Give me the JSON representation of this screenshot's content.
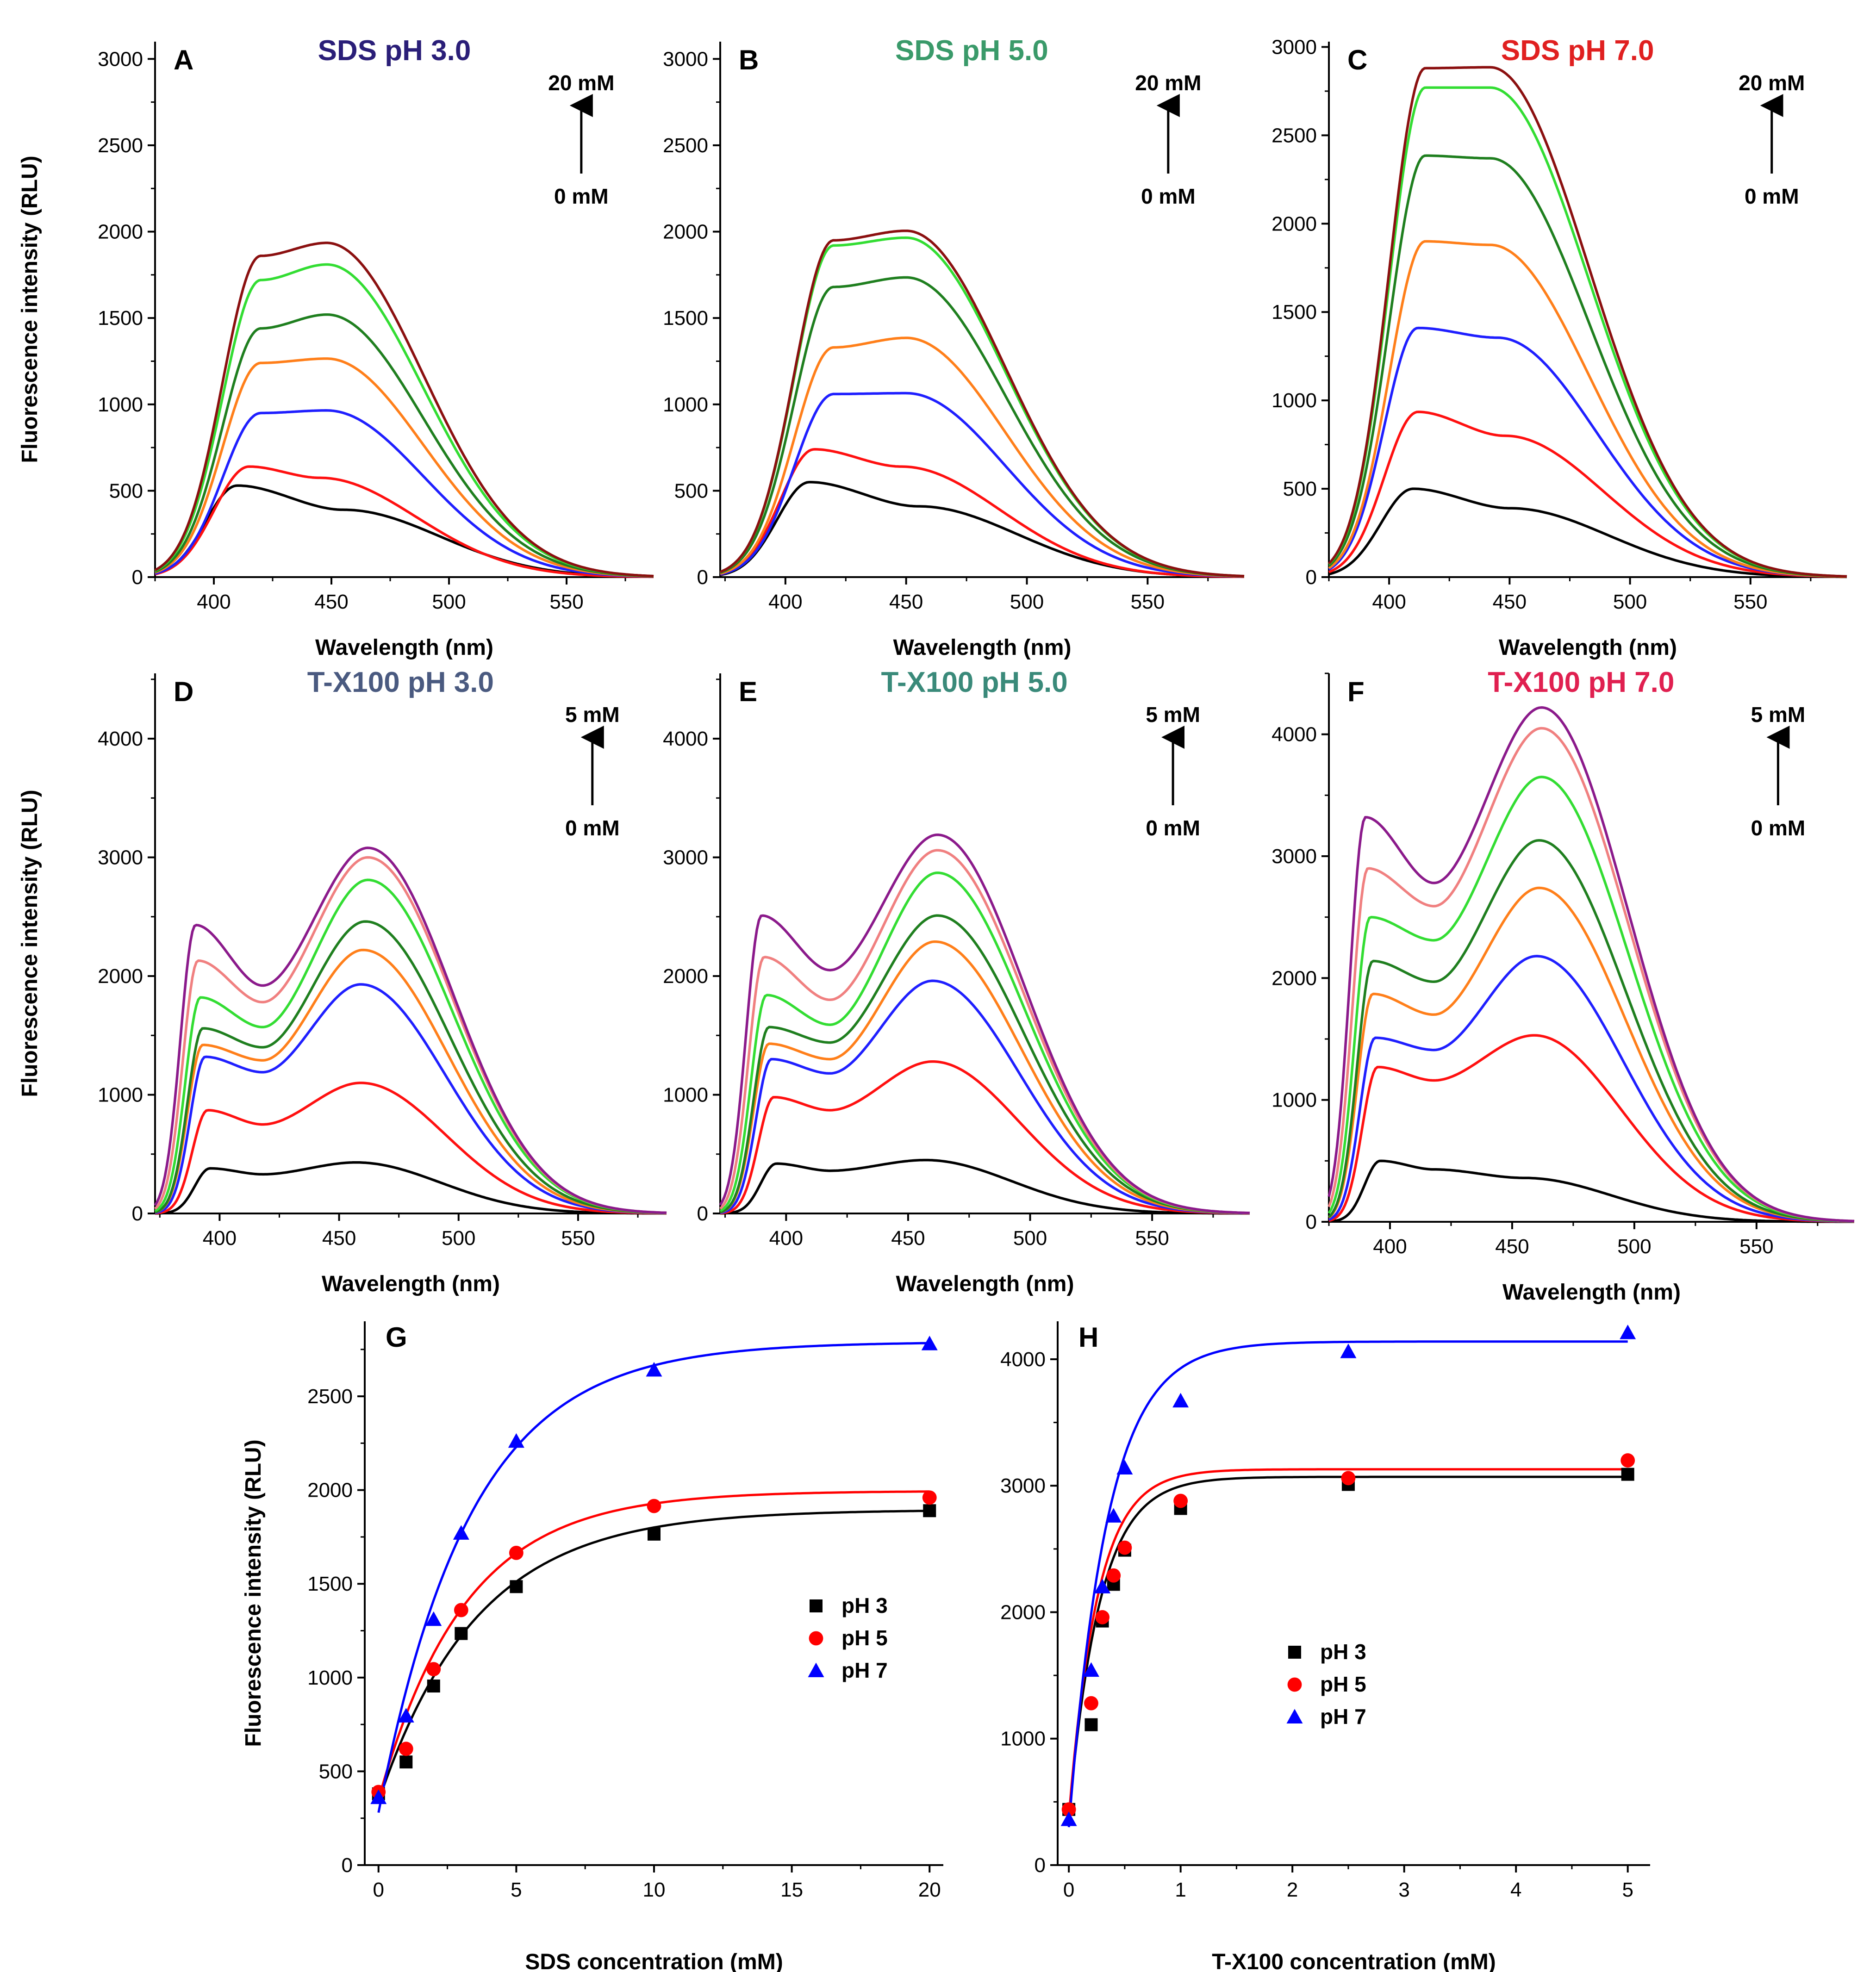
{
  "figure": {
    "spectra_panels": [
      {
        "letter": "A",
        "title": "SDS pH 3.0",
        "title_color": "#2a1e78",
        "xlabel": "Wavelength (nm)",
        "ylabel": "Fluorescence intensity (RLU)",
        "xlim": [
          375,
          587
        ],
        "ylim": [
          0,
          3100
        ],
        "xticks": [
          400,
          450,
          500,
          550
        ],
        "yticks": [
          0,
          500,
          1000,
          1500,
          2000,
          2500,
          3000
        ],
        "arrow_top": "20 mM",
        "arrow_bottom": "0 mM",
        "series": [
          {
            "color": "#000000",
            "shape": "split",
            "a": 530,
            "b": 390,
            "c": 410,
            "d": 455
          },
          {
            "color": "#ff1010",
            "shape": "split",
            "a": 640,
            "b": 575,
            "c": 415,
            "d": 445
          },
          {
            "color": "#1f1fff",
            "shape": "split",
            "a": 950,
            "b": 965,
            "c": 420,
            "d": 448
          },
          {
            "color": "#ff7f1a",
            "shape": "split",
            "a": 1240,
            "b": 1265,
            "c": 420,
            "d": 448
          },
          {
            "color": "#1f7f1f",
            "shape": "split",
            "a": 1440,
            "b": 1520,
            "c": 420,
            "d": 448
          },
          {
            "color": "#33dd33",
            "shape": "split",
            "a": 1720,
            "b": 1810,
            "c": 420,
            "d": 448
          },
          {
            "color": "#8b1010",
            "shape": "split",
            "a": 1860,
            "b": 1935,
            "c": 420,
            "d": 448
          }
        ]
      },
      {
        "letter": "B",
        "title": "SDS pH 5.0",
        "title_color": "#3a9a6a",
        "xlabel": "Wavelength (nm)",
        "ylabel": "",
        "xlim": [
          373,
          590
        ],
        "ylim": [
          0,
          3100
        ],
        "xticks": [
          400,
          450,
          500,
          550
        ],
        "yticks": [
          0,
          500,
          1000,
          1500,
          2000,
          2500,
          3000
        ],
        "arrow_top": "20 mM",
        "arrow_bottom": "0 mM",
        "series": [
          {
            "color": "#000000",
            "shape": "split",
            "a": 550,
            "b": 410,
            "c": 410,
            "d": 455
          },
          {
            "color": "#ff1010",
            "shape": "split",
            "a": 740,
            "b": 640,
            "c": 412,
            "d": 448
          },
          {
            "color": "#1f1fff",
            "shape": "split",
            "a": 1060,
            "b": 1065,
            "c": 420,
            "d": 450
          },
          {
            "color": "#ff7f1a",
            "shape": "split",
            "a": 1330,
            "b": 1385,
            "c": 420,
            "d": 450
          },
          {
            "color": "#1f7f1f",
            "shape": "split",
            "a": 1680,
            "b": 1735,
            "c": 420,
            "d": 450
          },
          {
            "color": "#33dd33",
            "shape": "split",
            "a": 1920,
            "b": 1965,
            "c": 420,
            "d": 450
          },
          {
            "color": "#8b1010",
            "shape": "split",
            "a": 1950,
            "b": 2005,
            "c": 420,
            "d": 450
          }
        ]
      },
      {
        "letter": "C",
        "title": "SDS pH 7.0",
        "title_color": "#e02020",
        "xlabel": "Wavelength (nm)",
        "ylabel": "",
        "xlim": [
          375,
          590
        ],
        "ylim": [
          0,
          3030
        ],
        "xticks": [
          400,
          450,
          500,
          550
        ],
        "yticks": [
          0,
          500,
          1000,
          1500,
          2000,
          2500,
          3000
        ],
        "arrow_top": "20 mM",
        "arrow_bottom": "0 mM",
        "series": [
          {
            "color": "#000000",
            "shape": "split",
            "a": 500,
            "b": 390,
            "c": 410,
            "d": 450
          },
          {
            "color": "#ff1010",
            "shape": "split",
            "a": 935,
            "b": 800,
            "c": 412,
            "d": 448
          },
          {
            "color": "#1f1fff",
            "shape": "split",
            "a": 1410,
            "b": 1355,
            "c": 412,
            "d": 445
          },
          {
            "color": "#ff7f1a",
            "shape": "split",
            "a": 1900,
            "b": 1880,
            "c": 415,
            "d": 442
          },
          {
            "color": "#1f7f1f",
            "shape": "split",
            "a": 2385,
            "b": 2370,
            "c": 415,
            "d": 442
          },
          {
            "color": "#33dd33",
            "shape": "split",
            "a": 2770,
            "b": 2770,
            "c": 415,
            "d": 442
          },
          {
            "color": "#8b1010",
            "shape": "split",
            "a": 2880,
            "b": 2885,
            "c": 415,
            "d": 442
          }
        ]
      },
      {
        "letter": "D",
        "title": "T-X100 pH 3.0",
        "title_color": "#4a5a80",
        "xlabel": "Wavelength (nm)",
        "ylabel": "Fluorescence intensity (RLU)",
        "xlim": [
          373,
          587
        ],
        "ylim": [
          0,
          4550
        ],
        "xticks": [
          400,
          450,
          500,
          550
        ],
        "yticks": [
          0,
          1000,
          2000,
          3000,
          4000
        ],
        "arrow_top": "5 mM",
        "arrow_bottom": "0 mM",
        "series": [
          {
            "color": "#000000",
            "shape": "double",
            "p1": 380,
            "p2": 430,
            "m": 330,
            "x1": 396,
            "x2": 457
          },
          {
            "color": "#ff1010",
            "shape": "double",
            "p1": 870,
            "p2": 1100,
            "m": 750,
            "x1": 395,
            "x2": 459
          },
          {
            "color": "#1f1fff",
            "shape": "double",
            "p1": 1320,
            "p2": 1930,
            "m": 1190,
            "x1": 394,
            "x2": 459
          },
          {
            "color": "#ff7f1a",
            "shape": "double",
            "p1": 1420,
            "p2": 2220,
            "m": 1290,
            "x1": 393,
            "x2": 460
          },
          {
            "color": "#1f7f1f",
            "shape": "double",
            "p1": 1560,
            "p2": 2460,
            "m": 1400,
            "x1": 393,
            "x2": 461
          },
          {
            "color": "#33dd33",
            "shape": "double",
            "p1": 1820,
            "p2": 2810,
            "m": 1570,
            "x1": 392,
            "x2": 462
          },
          {
            "color": "#f08080",
            "shape": "double",
            "p1": 2130,
            "p2": 3000,
            "m": 1780,
            "x1": 391,
            "x2": 462
          },
          {
            "color": "#8b1a8b",
            "shape": "double",
            "p1": 2430,
            "p2": 3080,
            "m": 1920,
            "x1": 390,
            "x2": 462
          }
        ]
      },
      {
        "letter": "E",
        "title": "T-X100 pH 5.0",
        "title_color": "#3a8a7a",
        "xlabel": "Wavelength (nm)",
        "ylabel": "",
        "xlim": [
          373,
          590
        ],
        "ylim": [
          0,
          4550
        ],
        "xticks": [
          400,
          450,
          500,
          550
        ],
        "yticks": [
          0,
          1000,
          2000,
          3000,
          4000
        ],
        "arrow_top": "5 mM",
        "arrow_bottom": "0 mM",
        "series": [
          {
            "color": "#000000",
            "shape": "double",
            "p1": 420,
            "p2": 450,
            "m": 360,
            "x1": 396,
            "x2": 457
          },
          {
            "color": "#ff1010",
            "shape": "double",
            "p1": 980,
            "p2": 1280,
            "m": 870,
            "x1": 395,
            "x2": 460
          },
          {
            "color": "#1f1fff",
            "shape": "double",
            "p1": 1300,
            "p2": 1960,
            "m": 1180,
            "x1": 394,
            "x2": 460
          },
          {
            "color": "#ff7f1a",
            "shape": "double",
            "p1": 1430,
            "p2": 2290,
            "m": 1300,
            "x1": 393,
            "x2": 461
          },
          {
            "color": "#1f7f1f",
            "shape": "double",
            "p1": 1570,
            "p2": 2510,
            "m": 1440,
            "x1": 393,
            "x2": 462
          },
          {
            "color": "#33dd33",
            "shape": "double",
            "p1": 1840,
            "p2": 2870,
            "m": 1590,
            "x1": 392,
            "x2": 462
          },
          {
            "color": "#f08080",
            "shape": "double",
            "p1": 2160,
            "p2": 3060,
            "m": 1800,
            "x1": 391,
            "x2": 462
          },
          {
            "color": "#8b1a8b",
            "shape": "double",
            "p1": 2510,
            "p2": 3190,
            "m": 2050,
            "x1": 390,
            "x2": 462
          }
        ]
      },
      {
        "letter": "F",
        "title": "T-X100 pH 7.0",
        "title_color": "#e02050",
        "xlabel": "Wavelength (nm)",
        "ylabel": "",
        "xlim": [
          375,
          590
        ],
        "ylim": [
          0,
          4500
        ],
        "xticks": [
          400,
          450,
          500,
          550
        ],
        "yticks": [
          0,
          1000,
          2000,
          3000,
          4000
        ],
        "arrow_top": "5 mM",
        "arrow_bottom": "0 mM",
        "series": [
          {
            "color": "#000000",
            "shape": "double",
            "p1": 500,
            "p2": 360,
            "m": 430,
            "x1": 396,
            "x2": 455
          },
          {
            "color": "#ff1010",
            "shape": "double",
            "p1": 1270,
            "p2": 1530,
            "m": 1160,
            "x1": 395,
            "x2": 459
          },
          {
            "color": "#1f1fff",
            "shape": "double",
            "p1": 1510,
            "p2": 2180,
            "m": 1410,
            "x1": 394,
            "x2": 460
          },
          {
            "color": "#ff7f1a",
            "shape": "double",
            "p1": 1870,
            "p2": 2740,
            "m": 1700,
            "x1": 393,
            "x2": 461
          },
          {
            "color": "#1f7f1f",
            "shape": "double",
            "p1": 2140,
            "p2": 3130,
            "m": 1970,
            "x1": 393,
            "x2": 461
          },
          {
            "color": "#33dd33",
            "shape": "double",
            "p1": 2500,
            "p2": 3650,
            "m": 2310,
            "x1": 392,
            "x2": 462
          },
          {
            "color": "#f08080",
            "shape": "double",
            "p1": 2900,
            "p2": 4050,
            "m": 2590,
            "x1": 391,
            "x2": 462
          },
          {
            "color": "#8b1a8b",
            "shape": "double",
            "p1": 3320,
            "p2": 4220,
            "m": 2780,
            "x1": 390,
            "x2": 462
          }
        ]
      }
    ],
    "scatter_panels": [
      {
        "letter": "G",
        "xlabel": "SDS concentration (mM)",
        "ylabel": "Fluorescence intensity (RLU)",
        "xlim": [
          -0.5,
          20.5
        ],
        "ylim": [
          0,
          2900
        ],
        "xticks": [
          0,
          5,
          10,
          15,
          20
        ],
        "yticks": [
          0,
          500,
          1000,
          1500,
          2000,
          2500
        ],
        "legend": [
          {
            "label": "pH 3",
            "marker": "square",
            "color": "#000000"
          },
          {
            "label": "pH 5",
            "marker": "circle",
            "color": "#ff0000"
          },
          {
            "label": "pH 7",
            "marker": "triangle",
            "color": "#0000ff"
          }
        ],
        "x": [
          0,
          1,
          2,
          3,
          5,
          10,
          20
        ],
        "series": [
          {
            "name": "pH 3",
            "marker": "square",
            "color": "#000000",
            "values": [
              380,
              550,
              955,
              1235,
              1485,
              1765,
              1890
            ],
            "fit": {
              "y0": 340,
              "A": 1555,
              "k": 0.28
            }
          },
          {
            "name": "pH 5",
            "marker": "circle",
            "color": "#ff0000",
            "values": [
              390,
              620,
              1045,
              1360,
              1665,
              1915,
              1960
            ],
            "fit": {
              "y0": 350,
              "A": 1645,
              "k": 0.32
            }
          },
          {
            "name": "pH 7",
            "marker": "triangle",
            "color": "#0000ff",
            "values": [
              360,
              795,
              1310,
              1770,
              2260,
              2640,
              2780
            ],
            "fit": {
              "y0": 280,
              "A": 2510,
              "k": 0.3
            }
          }
        ]
      },
      {
        "letter": "H",
        "xlabel": "T-X100 concentration (mM)",
        "ylabel": "",
        "xlim": [
          -0.1,
          5.2
        ],
        "ylim": [
          0,
          4300
        ],
        "xticks": [
          0,
          1,
          2,
          3,
          4,
          5
        ],
        "yticks": [
          0,
          1000,
          2000,
          3000,
          4000
        ],
        "legend": [
          {
            "label": "pH 3",
            "marker": "square",
            "color": "#000000"
          },
          {
            "label": "pH 5",
            "marker": "circle",
            "color": "#ff0000"
          },
          {
            "label": "pH 7",
            "marker": "triangle",
            "color": "#0000ff"
          }
        ],
        "x": [
          0,
          0.2,
          0.3,
          0.4,
          0.5,
          1,
          2.5,
          5
        ],
        "series": [
          {
            "name": "pH 3",
            "marker": "square",
            "color": "#000000",
            "values": [
              440,
              1110,
              1930,
              2220,
              2490,
              2820,
              3010,
              3090
            ],
            "fit": {
              "y0": 380,
              "A": 2690,
              "k": 3.6
            }
          },
          {
            "name": "pH 5",
            "marker": "circle",
            "color": "#ff0000",
            "values": [
              440,
              1280,
              1960,
              2290,
              2510,
              2880,
              3060,
              3200
            ],
            "fit": {
              "y0": 380,
              "A": 2750,
              "k": 3.9
            }
          },
          {
            "name": "pH 7",
            "marker": "triangle",
            "color": "#0000ff",
            "values": [
              360,
              1540,
              2200,
              2760,
              3140,
              3670,
              4060,
              4210
            ],
            "fit": {
              "y0": 300,
              "A": 3840,
              "k": 2.9
            }
          }
        ]
      }
    ]
  },
  "chart_data": [
    {
      "panel": "A",
      "type": "line",
      "title": "SDS pH 3.0",
      "xlabel": "Wavelength (nm)",
      "ylabel": "Fluorescence intensity (RLU)",
      "xlim": [
        375,
        587
      ],
      "ylim": [
        0,
        3100
      ],
      "series_concentration_range": [
        "0 mM",
        "20 mM"
      ]
    },
    {
      "panel": "B",
      "type": "line",
      "title": "SDS pH 5.0",
      "xlabel": "Wavelength (nm)",
      "ylim": [
        0,
        3100
      ]
    },
    {
      "panel": "C",
      "type": "line",
      "title": "SDS pH 7.0",
      "xlabel": "Wavelength (nm)",
      "ylim": [
        0,
        3030
      ]
    },
    {
      "panel": "D",
      "type": "line",
      "title": "T-X100 pH 3.0",
      "xlabel": "Wavelength (nm)",
      "ylabel": "Fluorescence intensity (RLU)",
      "ylim": [
        0,
        4550
      ],
      "series_concentration_range": [
        "0 mM",
        "5 mM"
      ]
    },
    {
      "panel": "E",
      "type": "line",
      "title": "T-X100 pH 5.0",
      "xlabel": "Wavelength (nm)",
      "ylim": [
        0,
        4550
      ]
    },
    {
      "panel": "F",
      "type": "line",
      "title": "T-X100 pH 7.0",
      "xlabel": "Wavelength (nm)",
      "ylim": [
        0,
        4500
      ]
    },
    {
      "panel": "G",
      "type": "scatter",
      "xlabel": "SDS concentration (mM)",
      "ylabel": "Fluorescence intensity (RLU)",
      "x": [
        0,
        1,
        2,
        3,
        5,
        10,
        20
      ],
      "series": [
        {
          "name": "pH 3",
          "values": [
            380,
            550,
            955,
            1235,
            1485,
            1765,
            1890
          ]
        },
        {
          "name": "pH 5",
          "values": [
            390,
            620,
            1045,
            1360,
            1665,
            1915,
            1960
          ]
        },
        {
          "name": "pH 7",
          "values": [
            360,
            795,
            1310,
            1770,
            2260,
            2640,
            2780
          ]
        }
      ]
    },
    {
      "panel": "H",
      "type": "scatter",
      "xlabel": "T-X100 concentration (mM)",
      "x": [
        0,
        0.2,
        0.3,
        0.4,
        0.5,
        1,
        2.5,
        5
      ],
      "series": [
        {
          "name": "pH 3",
          "values": [
            440,
            1110,
            1930,
            2220,
            2490,
            2820,
            3010,
            3090
          ]
        },
        {
          "name": "pH 5",
          "values": [
            440,
            1280,
            1960,
            2290,
            2510,
            2880,
            3060,
            3200
          ]
        },
        {
          "name": "pH 7",
          "values": [
            360,
            1540,
            2200,
            2760,
            3140,
            3670,
            4060,
            4210
          ]
        }
      ]
    }
  ]
}
